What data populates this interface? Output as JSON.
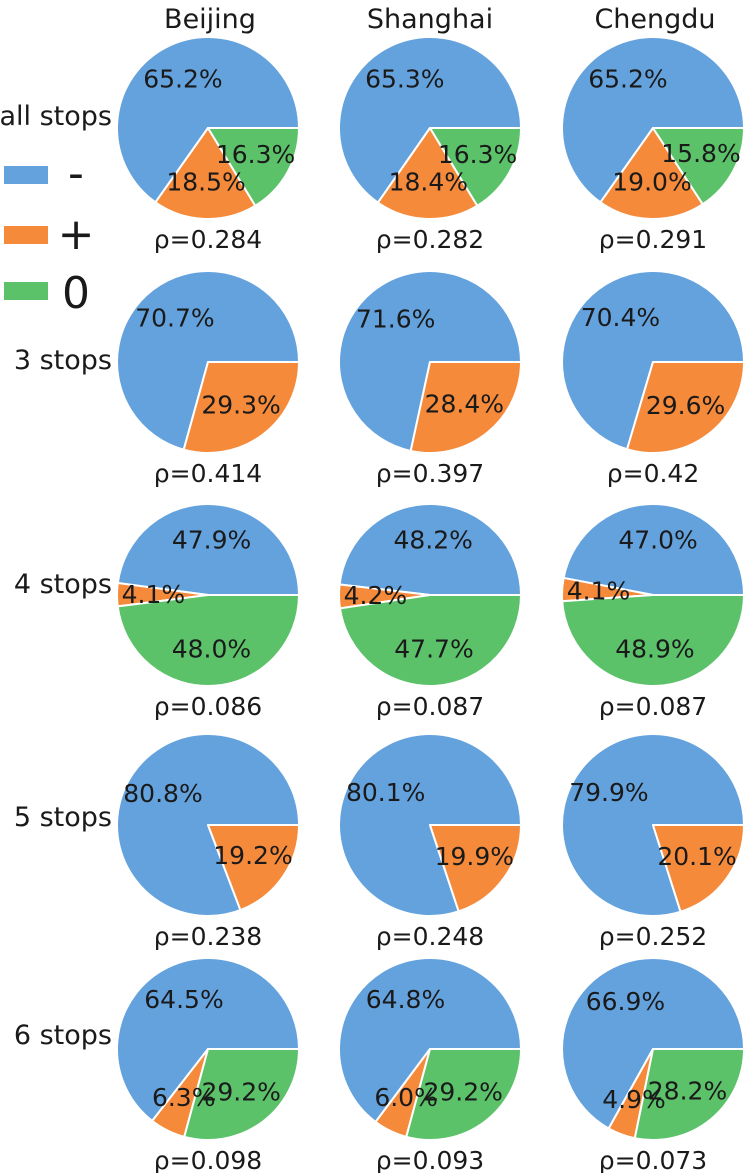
{
  "chart_data": {
    "type": "pie",
    "columns": [
      "Beijing",
      "Shanghai",
      "Chengdu"
    ],
    "rows": [
      "all stops",
      "3 stops",
      "4 stops",
      "5 stops",
      "6 stops"
    ],
    "legend": [
      {
        "symbol": "-",
        "color": "#64a2de"
      },
      {
        "symbol": "+",
        "color": "#f58a3b"
      },
      {
        "symbol": "0",
        "color": "#5cc26a"
      }
    ],
    "slice_order": [
      "-",
      "+",
      "0"
    ],
    "pies": [
      [
        {
          "values": [
            65.2,
            18.5,
            16.3
          ],
          "labels": [
            "65.2%",
            "18.5%",
            "16.3%"
          ],
          "rho": "ρ=0.284"
        },
        {
          "values": [
            65.3,
            18.4,
            16.3
          ],
          "labels": [
            "65.3%",
            "18.4%",
            "16.3%"
          ],
          "rho": "ρ=0.282"
        },
        {
          "values": [
            65.2,
            19.0,
            15.8
          ],
          "labels": [
            "65.2%",
            "19.0%",
            "15.8%"
          ],
          "rho": "ρ=0.291"
        }
      ],
      [
        {
          "values": [
            70.7,
            29.3,
            0
          ],
          "labels": [
            "70.7%",
            "29.3%",
            ""
          ],
          "rho": "ρ=0.414"
        },
        {
          "values": [
            71.6,
            28.4,
            0
          ],
          "labels": [
            "71.6%",
            "28.4%",
            ""
          ],
          "rho": "ρ=0.397"
        },
        {
          "values": [
            70.4,
            29.6,
            0
          ],
          "labels": [
            "70.4%",
            "29.6%",
            ""
          ],
          "rho": "ρ=0.42"
        }
      ],
      [
        {
          "values": [
            47.9,
            4.1,
            48.0
          ],
          "labels": [
            "47.9%",
            "4.1%",
            "48.0%"
          ],
          "rho": "ρ=0.086"
        },
        {
          "values": [
            48.2,
            4.2,
            47.7
          ],
          "labels": [
            "48.2%",
            "4.2%",
            "47.7%"
          ],
          "rho": "ρ=0.087"
        },
        {
          "values": [
            47.0,
            4.1,
            48.9
          ],
          "labels": [
            "47.0%",
            "4.1%",
            "48.9%"
          ],
          "rho": "ρ=0.087"
        }
      ],
      [
        {
          "values": [
            80.8,
            19.2,
            0
          ],
          "labels": [
            "80.8%",
            "19.2%",
            ""
          ],
          "rho": "ρ=0.238"
        },
        {
          "values": [
            80.1,
            19.9,
            0
          ],
          "labels": [
            "80.1%",
            "19.9%",
            ""
          ],
          "rho": "ρ=0.248"
        },
        {
          "values": [
            79.9,
            20.1,
            0
          ],
          "labels": [
            "79.9%",
            "20.1%",
            ""
          ],
          "rho": "ρ=0.252"
        }
      ],
      [
        {
          "values": [
            64.5,
            6.3,
            29.2
          ],
          "labels": [
            "64.5%",
            "6.3%",
            "29.2%"
          ],
          "rho": "ρ=0.098"
        },
        {
          "values": [
            64.8,
            6.0,
            29.2
          ],
          "labels": [
            "64.8%",
            "6.0%",
            "29.2%"
          ],
          "rho": "ρ=0.093"
        },
        {
          "values": [
            66.9,
            4.9,
            28.2
          ],
          "labels": [
            "66.9%",
            "4.9%",
            "28.2%"
          ],
          "rho": "ρ=0.073"
        }
      ]
    ]
  }
}
